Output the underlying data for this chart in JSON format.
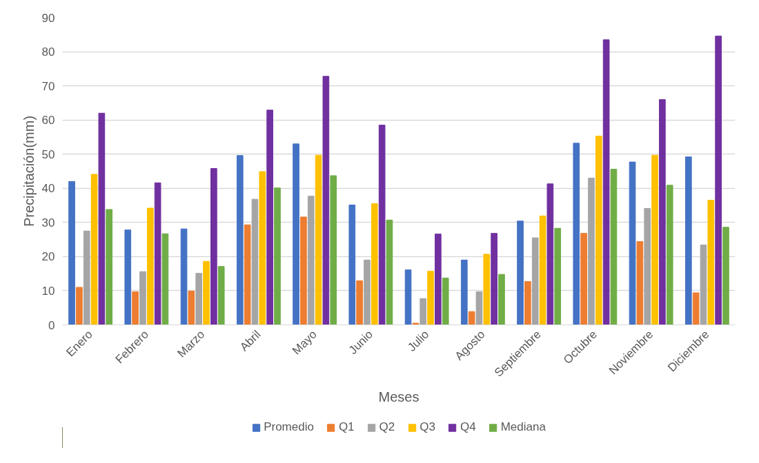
{
  "chart_data": {
    "type": "bar",
    "xlabel": "Meses",
    "ylabel": "Precipitación(mm)",
    "categories": [
      "Enero",
      "Febrero",
      "Marzo",
      "Abril",
      "Mayo",
      "Junio",
      "Julio",
      "Agosto",
      "Septiembre",
      "Octubre",
      "Noviembre",
      "Diciembre"
    ],
    "series": [
      {
        "name": "Promedio",
        "color": "#4472c4",
        "values": [
          42,
          27.8,
          28.1,
          49.6,
          53,
          35.1,
          16.1,
          19,
          30.4,
          53.2,
          47.7,
          49.2
        ]
      },
      {
        "name": "Q1",
        "color": "#ed7d31",
        "values": [
          11,
          9.7,
          9.9,
          29.3,
          31.6,
          12.9,
          0.5,
          3.9,
          12.7,
          26.8,
          24.4,
          9.4
        ]
      },
      {
        "name": "Q2",
        "color": "#a5a5a5",
        "values": [
          27.5,
          15.6,
          15.1,
          36.8,
          37.7,
          19,
          7.7,
          9.7,
          25.5,
          43,
          34.1,
          23.4
        ]
      },
      {
        "name": "Q3",
        "color": "#ffc000",
        "values": [
          44.1,
          34.2,
          18.6,
          44.9,
          49.7,
          35.5,
          15.7,
          20.7,
          31.9,
          55.3,
          49.7,
          36.5
        ]
      },
      {
        "name": "Q4",
        "color": "#7030a0",
        "values": [
          62,
          41.6,
          45.8,
          62.9,
          72.8,
          58.5,
          26.6,
          26.8,
          41.3,
          83.5,
          66,
          84.6
        ]
      },
      {
        "name": "Mediana",
        "color": "#70ad47",
        "values": [
          33.8,
          26.7,
          17.1,
          40.1,
          43.7,
          30.7,
          13.7,
          14.8,
          28.3,
          45.6,
          40.9,
          28.6
        ]
      }
    ],
    "ylim": [
      0,
      90
    ],
    "yticks": [
      0,
      10,
      20,
      30,
      40,
      50,
      60,
      70,
      80,
      90
    ],
    "grid": "y",
    "legend": "bottom"
  }
}
